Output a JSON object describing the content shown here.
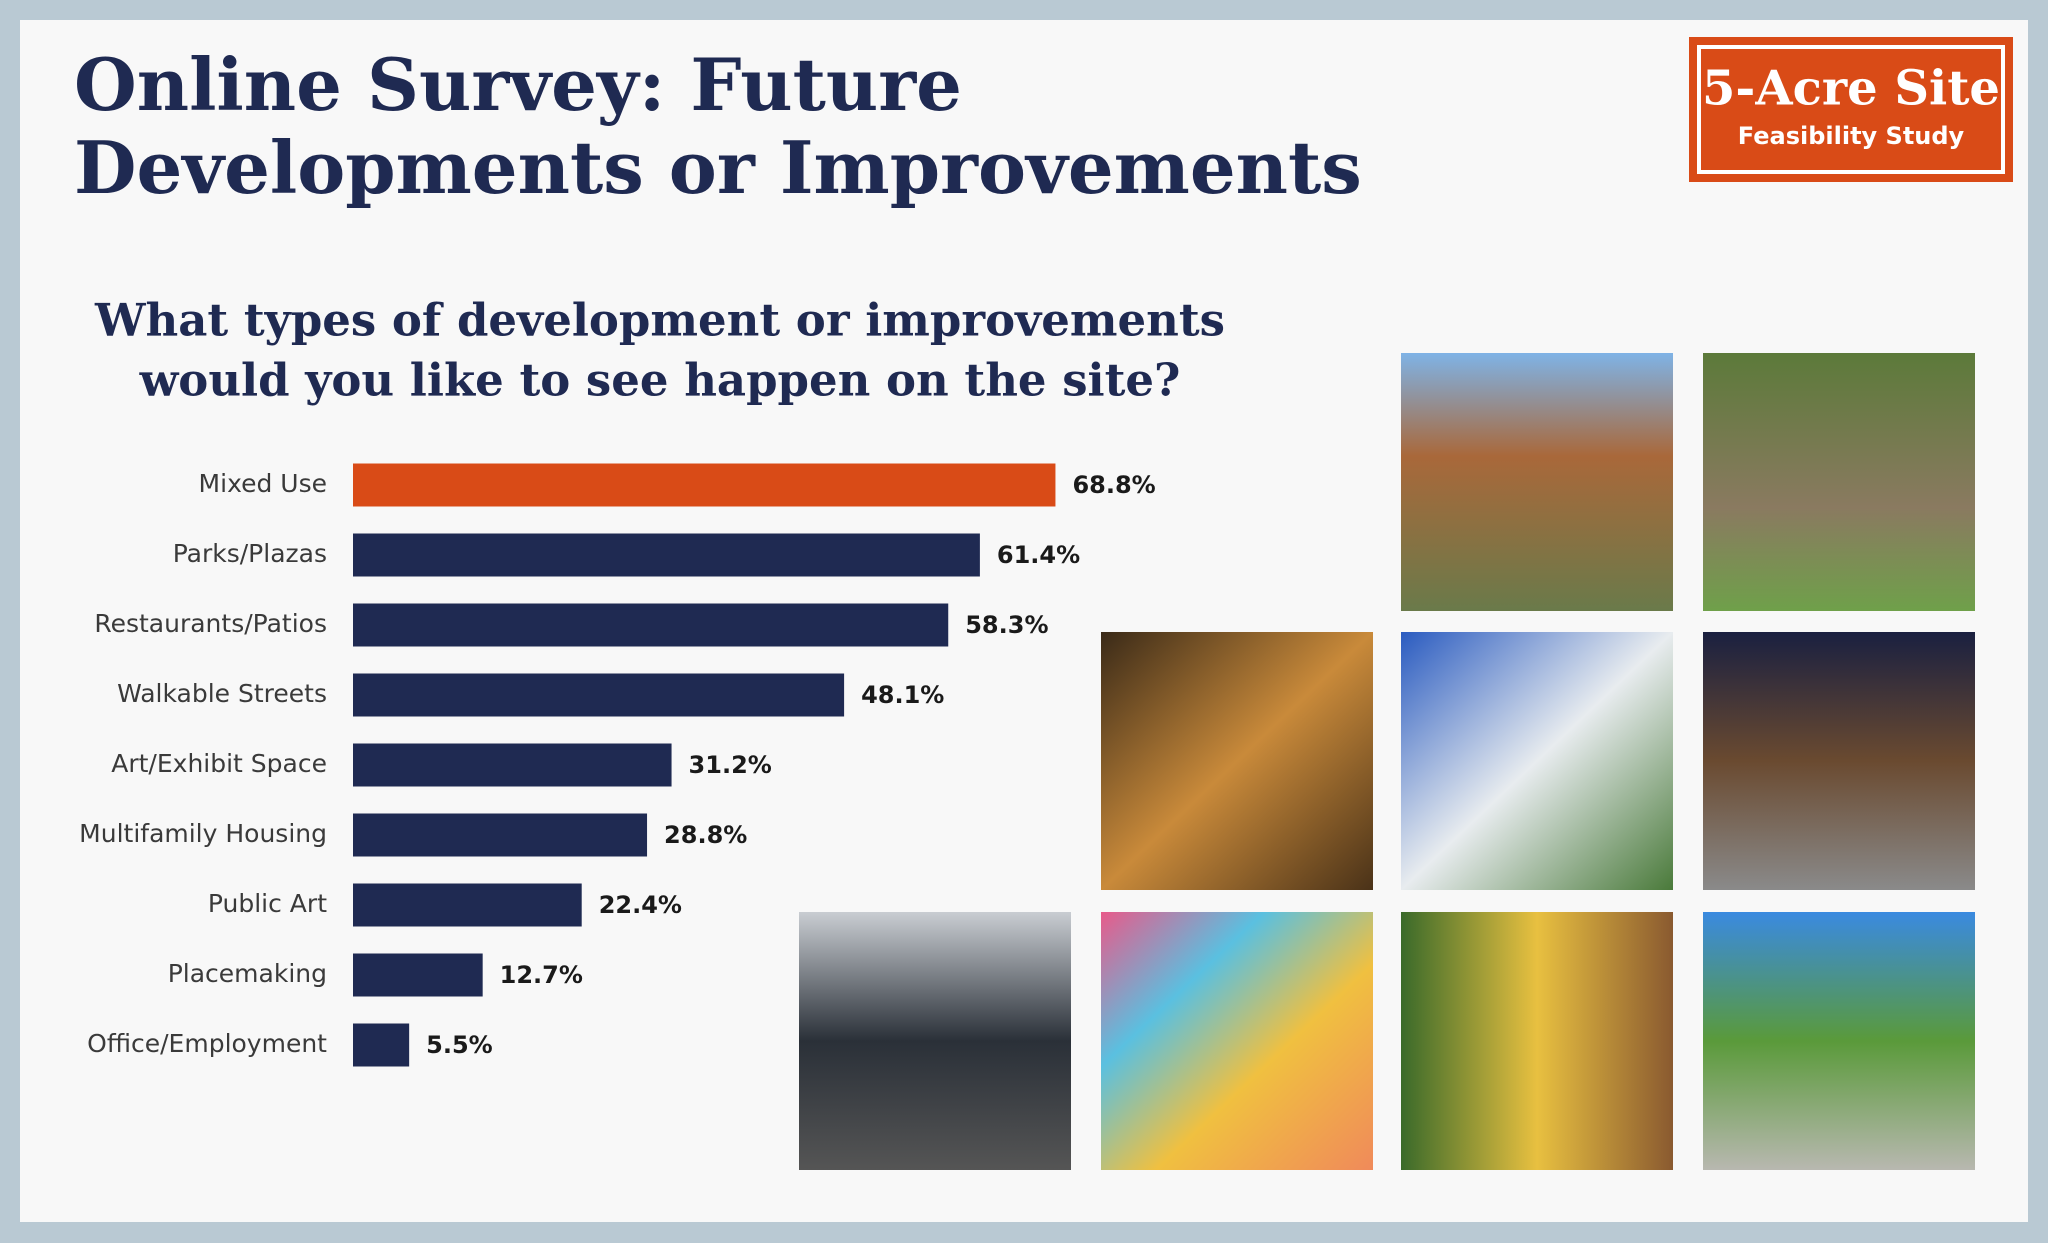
{
  "header": {
    "title_lines": [
      "Online Survey: Future",
      "Developments or Improvements"
    ],
    "badge": {
      "title": "5-Acre Site",
      "subtitle": "Feasibility Study"
    }
  },
  "chart_data": {
    "type": "bar",
    "orientation": "horizontal",
    "title_lines": [
      "What types of development or improvements",
      "would you like to see happen on the site?"
    ],
    "categories": [
      "Mixed Use",
      "Parks/Plazas",
      "Restaurants/Patios",
      "Walkable Streets",
      "Art/Exhibit Space",
      "Multifamily Housing",
      "Public Art",
      "Placemaking",
      "Office/Employment"
    ],
    "values": [
      68.8,
      61.4,
      58.3,
      48.1,
      31.2,
      28.8,
      22.4,
      12.7,
      5.5
    ],
    "value_labels": [
      "68.8%",
      "61.4%",
      "58.3%",
      "48.1%",
      "31.2%",
      "28.8%",
      "22.4%",
      "12.7%",
      "5.5%"
    ],
    "colors": [
      "#d94b17",
      "#1f2a52",
      "#1f2a52",
      "#1f2a52",
      "#1f2a52",
      "#1f2a52",
      "#1f2a52",
      "#1f2a52",
      "#1f2a52"
    ]
  }
}
